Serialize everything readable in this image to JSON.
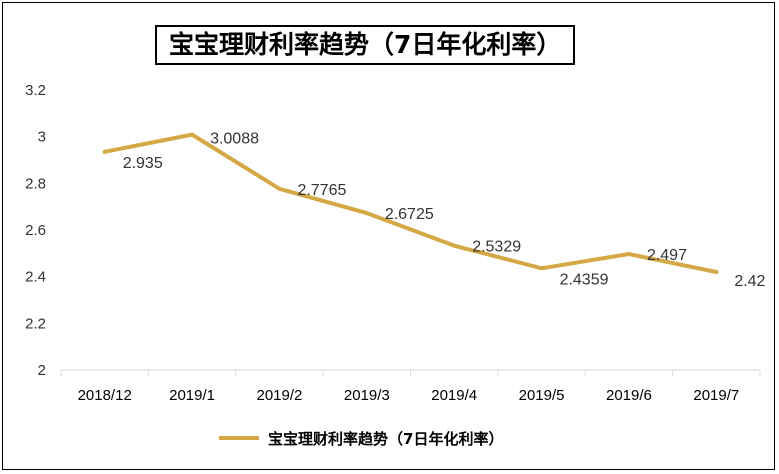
{
  "chart_data": {
    "type": "line",
    "title": "宝宝理财利率趋势（7日年化利率）",
    "categories": [
      "2018/12",
      "2019/1",
      "2019/2",
      "2019/3",
      "2019/4",
      "2019/5",
      "2019/6",
      "2019/7"
    ],
    "series": [
      {
        "name": "宝宝理财利率趋势（7日年化利率）",
        "values": [
          2.935,
          3.0088,
          2.7765,
          2.6725,
          2.5329,
          2.4359,
          2.497,
          2.42
        ],
        "labels": [
          "2.935",
          "3.0088",
          "2.7765",
          "2.6725",
          "2.5329",
          "2.4359",
          "2.497",
          "2.42"
        ],
        "color": "#D4A844"
      }
    ],
    "ylim": [
      2,
      3.2
    ],
    "yticks": [
      "2",
      "2.2",
      "2.4",
      "2.6",
      "2.8",
      "3",
      "3.2"
    ],
    "grid": false,
    "legend_position": "bottom"
  }
}
